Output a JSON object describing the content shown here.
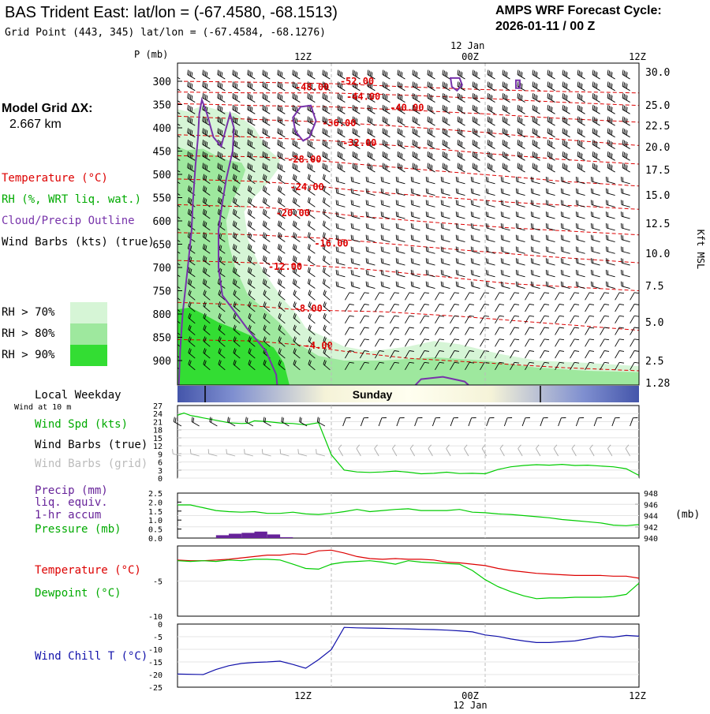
{
  "header": {
    "title": "BAS Trident East:  lat/lon = (-67.4580, -68.1513)",
    "subtitle": "Grid Point (443, 345) lat/lon = (-67.4584, -68.1276)",
    "cycle_line1": "AMPS WRF Forecast Cycle:",
    "cycle_line2": "2026-01-11 / 00  Z"
  },
  "model_grid": {
    "line1": "Model Grid ΔX:",
    "line2": "2.667 km"
  },
  "legend": {
    "temperature": "Temperature (°C)",
    "rh": "RH (%, WRT liq. wat.)",
    "cloud": "Cloud/Precip Outline",
    "wind": "Wind Barbs (kts) (true)",
    "rh70": "RH > 70%",
    "rh80": "RH > 80%",
    "rh90": "RH > 90%",
    "rh_colors": [
      "#d6f5d6",
      "#9ee89e",
      "#33dd33"
    ]
  },
  "time_axis": {
    "top_labels": [
      "12Z",
      "00Z",
      "12Z"
    ],
    "date_label": "12 Jan",
    "bottom_labels": [
      "12Z",
      "00Z",
      "12Z"
    ]
  },
  "weekday": {
    "label": "Local Weekday",
    "day": "Sunday",
    "wind_note": "Wind at 10 m"
  },
  "colors": {
    "temperature": "#dd0000",
    "dewpoint": "#00cc00",
    "cloud": "#7733aa",
    "windchill": "#1111aa",
    "precip": "#662299",
    "gridwind": "#aaaaaa"
  },
  "chart_data": [
    {
      "type": "line",
      "name": "cross-section",
      "ylabel": "P (mb)",
      "ylabel_right": "Kft MSL",
      "pressure_ticks": [
        300,
        350,
        400,
        450,
        500,
        550,
        600,
        650,
        700,
        750,
        800,
        850,
        900
      ],
      "height_ticks": [
        "30.0",
        "25.0",
        "22.5",
        "20.0",
        "17.5",
        "15.0",
        "12.5",
        "10.0",
        "7.5",
        "5.0",
        "2.5",
        "1.28"
      ],
      "isotherm_labels": [
        "-52.00",
        "-48.00",
        "-44.00",
        "-40.00",
        "-36.00",
        "-32.00",
        "-28.00",
        "-24.00",
        "-20.00",
        "-16.00",
        "-12.00",
        "-8.00",
        "-4.00"
      ]
    },
    {
      "type": "line",
      "name": "wind",
      "labels": [
        "Wind Spd (kts)",
        "Wind Barbs (true)",
        "Wind Barbs (grid)"
      ],
      "yticks": [
        "27",
        "24",
        "21",
        "18",
        "15",
        "12",
        "9",
        "6",
        "3",
        "0"
      ],
      "ylim": [
        0,
        27
      ],
      "x": [
        0,
        0.5,
        1,
        1.5,
        2,
        3,
        4,
        5,
        5.5,
        6,
        7,
        8,
        9,
        10,
        11,
        12,
        13,
        14,
        15,
        16,
        17,
        18,
        19,
        20,
        21,
        22,
        23,
        24,
        25,
        26,
        27,
        28,
        29,
        30,
        31,
        32,
        33,
        34,
        35,
        36
      ],
      "values": [
        23.4,
        24.2,
        23.3,
        22.9,
        22.4,
        21.5,
        20.6,
        20.3,
        20.4,
        21.3,
        21.0,
        20.5,
        20.3,
        19.8,
        20.6,
        8.7,
        3.0,
        2.3,
        2.1,
        2.3,
        2.6,
        2.2,
        1.6,
        1.8,
        2.2,
        1.7,
        1.8,
        1.6,
        3.2,
        4.2,
        4.7,
        5.0,
        4.8,
        5.1,
        4.7,
        4.8,
        4.5,
        4.2,
        3.5,
        1.0
      ]
    },
    {
      "type": "line",
      "name": "precip-pressure",
      "labels": [
        "Precip (mm)",
        "liq. equiv.",
        "1-hr accum",
        "Pressure (mb)"
      ],
      "ylabel_right": "(mb)",
      "yticks_left": [
        "2.5",
        "2.0",
        "1.5",
        "1.0",
        "0.5",
        "0.0"
      ],
      "yticks_right": [
        "948",
        "946",
        "944",
        "942",
        "940"
      ],
      "ylim_left": [
        0,
        2.5
      ],
      "ylim_right": [
        940,
        948
      ],
      "precip_x": [
        3.5,
        4.5,
        5.5,
        6.5,
        7.5,
        8.5
      ],
      "precip_values": [
        0.16,
        0.24,
        0.29,
        0.36,
        0.2,
        0.05
      ],
      "pressure_x": [
        0,
        1,
        2,
        3,
        4,
        5,
        6,
        7,
        8,
        9,
        10,
        11,
        12,
        13,
        14,
        15,
        16,
        17,
        18,
        19,
        20,
        21,
        22,
        23,
        24,
        25,
        26,
        27,
        28,
        29,
        30,
        31,
        32,
        33,
        34,
        35,
        36
      ],
      "pressure_values": [
        945.9,
        945.9,
        945.4,
        944.9,
        944.7,
        944.6,
        944.7,
        944.4,
        944.4,
        944.6,
        944.3,
        944.2,
        944.4,
        944.7,
        945.1,
        944.7,
        944.9,
        945.1,
        945.2,
        944.9,
        944.9,
        944.9,
        945.1,
        944.6,
        944.5,
        944.3,
        944.2,
        944.0,
        943.8,
        943.6,
        943.3,
        943.1,
        942.9,
        942.7,
        942.3,
        942.2,
        942.4
      ]
    },
    {
      "type": "line",
      "name": "temperature-dewpoint",
      "labels": [
        "Temperature (°C)",
        "Dewpoint (°C)"
      ],
      "yticks": [
        "-5",
        "-10"
      ],
      "ylim": [
        -10,
        0
      ],
      "temperature_x": [
        0,
        1,
        2,
        3,
        4,
        5,
        6,
        7,
        8,
        9,
        10,
        11,
        12,
        13,
        14,
        15,
        16,
        17,
        18,
        19,
        20,
        21,
        22,
        23,
        24,
        25,
        26,
        27,
        28,
        29,
        30,
        31,
        32,
        33,
        34,
        35,
        36
      ],
      "temperature_values": [
        -2.0,
        -2.1,
        -2.1,
        -2.0,
        -1.9,
        -1.7,
        -1.5,
        -1.3,
        -1.3,
        -1.1,
        -1.2,
        -0.7,
        -0.6,
        -1.0,
        -1.5,
        -1.8,
        -1.9,
        -1.8,
        -1.9,
        -1.9,
        -2.0,
        -2.3,
        -2.4,
        -2.6,
        -2.8,
        -3.2,
        -3.5,
        -3.7,
        -3.9,
        -4.0,
        -4.1,
        -4.2,
        -4.2,
        -4.2,
        -4.3,
        -4.3,
        -4.6
      ],
      "dewpoint_x": [
        0,
        1,
        2,
        3,
        4,
        5,
        6,
        7,
        8,
        9,
        10,
        11,
        12,
        13,
        14,
        15,
        16,
        17,
        18,
        19,
        20,
        21,
        22,
        23,
        24,
        25,
        26,
        27,
        28,
        29,
        30,
        31,
        32,
        33,
        34,
        35,
        36
      ],
      "dewpoint_values": [
        -2.1,
        -2.2,
        -2.1,
        -2.2,
        -2.0,
        -2.1,
        -1.9,
        -1.9,
        -2.0,
        -2.6,
        -3.2,
        -3.3,
        -2.6,
        -2.3,
        -2.2,
        -2.1,
        -2.3,
        -2.6,
        -2.1,
        -2.3,
        -2.4,
        -2.5,
        -2.6,
        -3.5,
        -4.8,
        -5.8,
        -6.5,
        -7.1,
        -7.5,
        -7.4,
        -7.4,
        -7.3,
        -7.3,
        -7.3,
        -7.2,
        -6.9,
        -5.3
      ]
    },
    {
      "type": "line",
      "name": "windchill",
      "labels": [
        "Wind Chill T (°C)"
      ],
      "yticks": [
        "0",
        "-5",
        "-10",
        "-15",
        "-20",
        "-25"
      ],
      "ylim": [
        -25,
        0
      ],
      "x": [
        0,
        2,
        3,
        4,
        5,
        6,
        7,
        8,
        9,
        10,
        11,
        12,
        13,
        14,
        15,
        16,
        17,
        18,
        19,
        20,
        21,
        22,
        23,
        24,
        25,
        26,
        27,
        28,
        29,
        30,
        31,
        32,
        33,
        34,
        35,
        36
      ],
      "values": [
        -19.8,
        -20.0,
        -18.0,
        -16.5,
        -15.6,
        -15.2,
        -15.0,
        -14.7,
        -16.0,
        -17.5,
        -14.1,
        -10.1,
        -1.3,
        -1.5,
        -1.6,
        -1.7,
        -1.8,
        -1.9,
        -2.1,
        -2.2,
        -2.4,
        -2.7,
        -3.1,
        -4.3,
        -4.9,
        -5.9,
        -6.7,
        -7.3,
        -7.3,
        -7.0,
        -6.7,
        -5.8,
        -4.9,
        -5.2,
        -4.5,
        -4.8
      ]
    }
  ]
}
